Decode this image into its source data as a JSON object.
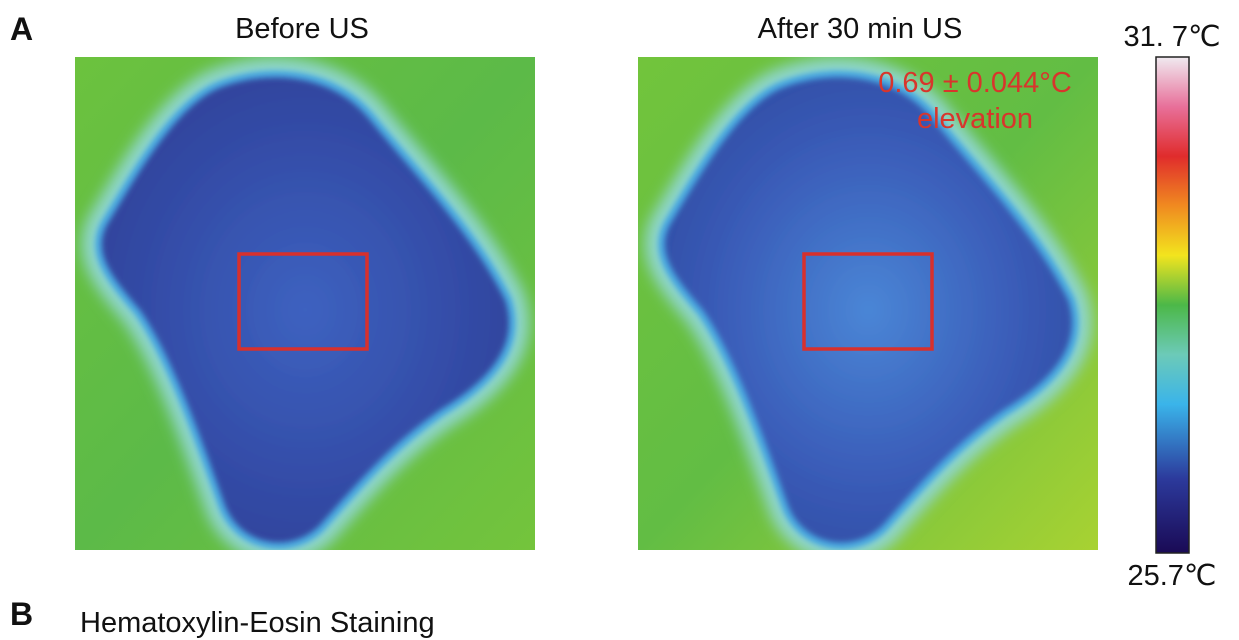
{
  "panel_a": {
    "label": "A",
    "images": [
      {
        "title": "Before US"
      },
      {
        "title": "After 30 min US",
        "annotation": [
          "0.69 ± 0.044°C",
          "elevation"
        ]
      }
    ],
    "colorbar": {
      "max_label": "31. 7℃",
      "min_label": "25.7℃"
    }
  },
  "panel_b": {
    "label": "B",
    "title": "Hematoxylin-Eosin Staining"
  }
}
